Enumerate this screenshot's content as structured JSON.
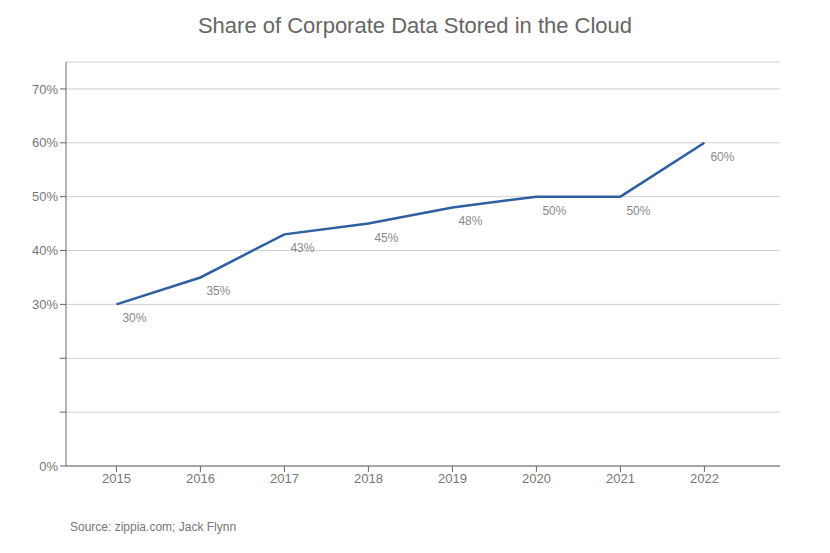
{
  "chart_data": {
    "type": "line",
    "title": "Share of Corporate Data Stored in the Cloud",
    "x": [
      2015,
      2016,
      2017,
      2018,
      2019,
      2020,
      2021,
      2022
    ],
    "values": [
      0.3,
      0.35,
      0.43,
      0.45,
      0.48,
      0.5,
      0.5,
      0.6
    ],
    "value_labels": [
      "30%",
      "35%",
      "43%",
      "45%",
      "48%",
      "50%",
      "50%",
      "60%"
    ],
    "data_labels": true,
    "color": "#2E5FA3",
    "xlim": [
      2014.4,
      2022.9
    ],
    "xticks": [
      2015,
      2016,
      2017,
      2018,
      2019,
      2020,
      2021,
      2022
    ],
    "ylim": [
      0.0,
      0.75
    ],
    "yticks": [
      {
        "value": 0.0,
        "label": "0%"
      },
      {
        "value": 0.1,
        "label": null
      },
      {
        "value": 0.2,
        "label": null
      },
      {
        "value": 0.3,
        "label": "30%"
      },
      {
        "value": 0.4,
        "label": "40%"
      },
      {
        "value": 0.5,
        "label": "50%"
      },
      {
        "value": 0.6,
        "label": "60%"
      },
      {
        "value": 0.7,
        "label": "70%"
      }
    ],
    "grid": true,
    "annotations": [
      "Source: zippia.com; Jack Flynn"
    ]
  }
}
